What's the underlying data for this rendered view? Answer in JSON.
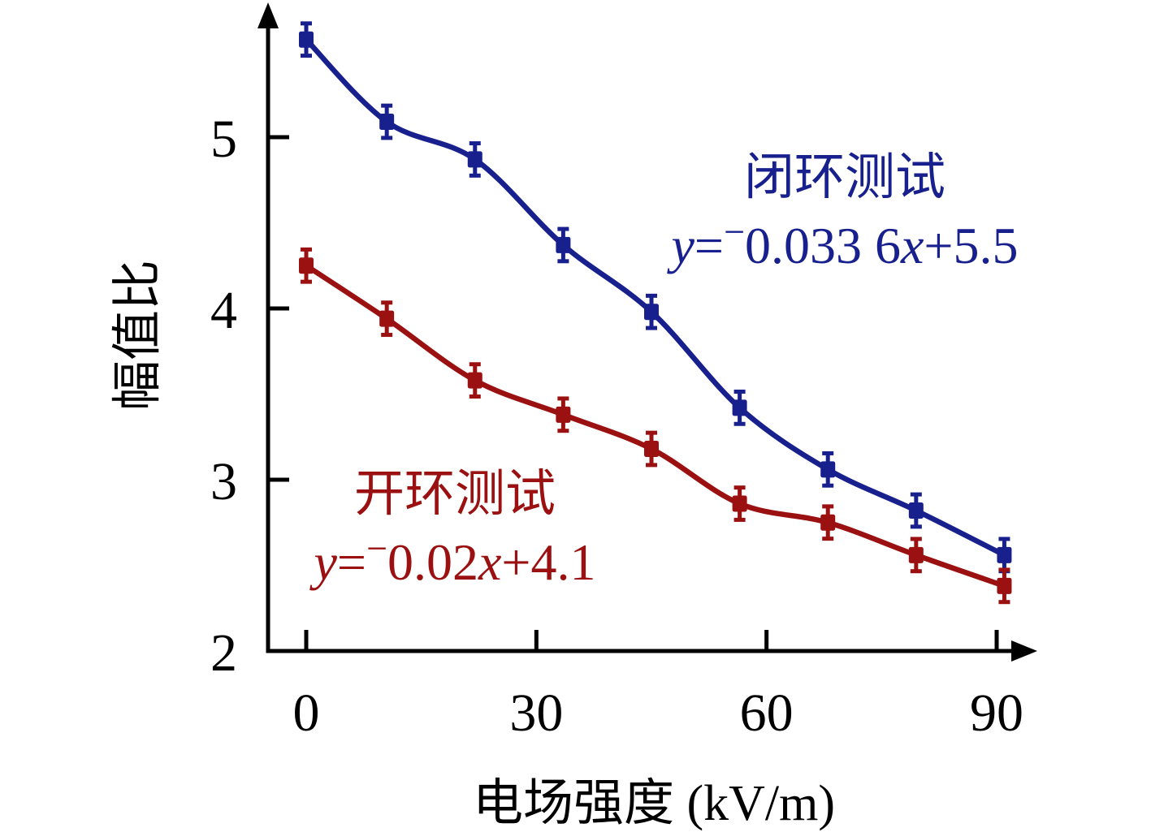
{
  "colors": {
    "background": "#ffffff",
    "axis": "#000000",
    "closed_loop": "#18208e",
    "open_loop": "#9b1010"
  },
  "chart_data": {
    "type": "scatter",
    "title": "",
    "xlabel": "电场强度 (kV/m)",
    "ylabel": "幅值比",
    "x_ticks": [
      "0",
      "30",
      "60",
      "90"
    ],
    "x_tick_values": [
      0,
      30,
      60,
      90
    ],
    "y_ticks": [
      "2",
      "3",
      "4",
      "5"
    ],
    "y_tick_values": [
      2,
      3,
      4,
      5
    ],
    "xlim": [
      -5,
      94
    ],
    "ylim": [
      2,
      5.8
    ],
    "legend_position": "inline-annotations",
    "grid": false,
    "error_bar": 0.08,
    "series": [
      {
        "name": "闭环测试",
        "color": "#18208e",
        "equation": "y=−0.033 6x+5.5",
        "x": [
          0,
          10.5,
          22,
          33.5,
          45,
          56.5,
          68,
          79.5,
          91
        ],
        "y": [
          5.57,
          5.09,
          4.87,
          4.37,
          3.98,
          3.42,
          3.06,
          2.82,
          2.56
        ]
      },
      {
        "name": "开环测试",
        "color": "#9b1010",
        "equation": "y=−0.02x+4.1",
        "x": [
          0,
          10.5,
          22,
          33.5,
          45,
          56.5,
          68,
          79.5,
          91
        ],
        "y": [
          4.25,
          3.94,
          3.58,
          3.38,
          3.18,
          2.86,
          2.75,
          2.56,
          2.38
        ]
      }
    ]
  },
  "annotations": {
    "closed_loop": {
      "title": "闭环测试",
      "eq": {
        "lhs": "y",
        "equals": "=",
        "minus": "−",
        "coefficient": "0.033 6",
        "variable": "x",
        "tail": "+5.5"
      }
    },
    "open_loop": {
      "title": "开环测试",
      "eq": {
        "lhs": "y",
        "equals": "=",
        "minus": "−",
        "coefficient": "0.02",
        "variable": "x",
        "tail": "+4.1"
      }
    }
  },
  "axis_titles": {
    "x": "电场强度 (kV/m)",
    "y": "幅值比"
  }
}
